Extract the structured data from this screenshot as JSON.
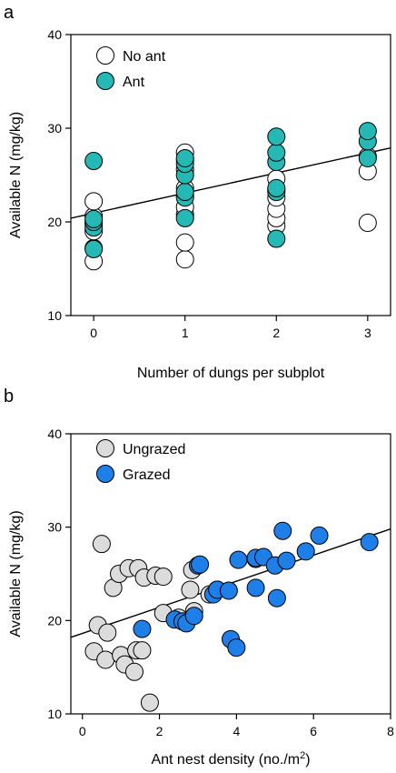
{
  "chart_data": [
    {
      "type": "scatter",
      "panel": "a",
      "xlabel": "Number of dungs per subplot",
      "ylabel": "Available N (mg/kg)",
      "xlim": [
        -0.25,
        3.25
      ],
      "ylim": [
        10,
        40
      ],
      "xticks": [
        0,
        1,
        2,
        3
      ],
      "yticks": [
        10,
        20,
        30,
        40
      ],
      "legend_position": "top-left",
      "series": [
        {
          "name": "No ant",
          "color": "#ffffff",
          "points": [
            [
              0,
              15.8
            ],
            [
              0,
              17.2
            ],
            [
              0,
              19.0
            ],
            [
              0,
              19.8
            ],
            [
              0,
              20.6
            ],
            [
              0,
              22.2
            ],
            [
              1,
              16.0
            ],
            [
              1,
              17.8
            ],
            [
              1,
              20.8
            ],
            [
              1,
              21.6
            ],
            [
              1,
              22.8
            ],
            [
              1,
              23.6
            ],
            [
              1,
              25.6
            ],
            [
              1,
              26.6
            ],
            [
              1,
              27.4
            ],
            [
              2,
              19.6
            ],
            [
              2,
              20.4
            ],
            [
              2,
              21.4
            ],
            [
              2,
              22.6
            ],
            [
              2,
              23.4
            ],
            [
              2,
              24.6
            ],
            [
              3,
              19.9
            ],
            [
              3,
              25.4
            ],
            [
              3,
              27.0
            ]
          ]
        },
        {
          "name": "Ant",
          "color": "#25b8b4",
          "points": [
            [
              0,
              17.1
            ],
            [
              0,
              19.4
            ],
            [
              0,
              20.0
            ],
            [
              0,
              20.3
            ],
            [
              0,
              26.5
            ],
            [
              1,
              20.4
            ],
            [
              1,
              22.6
            ],
            [
              1,
              23.2
            ],
            [
              1,
              25.0
            ],
            [
              1,
              26.2
            ],
            [
              1,
              26.8
            ],
            [
              2,
              18.2
            ],
            [
              2,
              23.2
            ],
            [
              2,
              23.6
            ],
            [
              2,
              26.4
            ],
            [
              2,
              27.4
            ],
            [
              2,
              29.1
            ],
            [
              3,
              26.8
            ],
            [
              3,
              28.6
            ],
            [
              3,
              29.7
            ]
          ]
        }
      ],
      "fit_line": {
        "x": [
          -0.25,
          3.25
        ],
        "y": [
          20.4,
          27.9
        ]
      }
    },
    {
      "type": "scatter",
      "panel": "b",
      "xlabel_main": "Ant nest density (no./m",
      "xlabel_sup": "2",
      "xlabel_end": ")",
      "ylabel": "Available N (mg/kg)",
      "xlim": [
        -0.3,
        8
      ],
      "ylim": [
        10,
        40
      ],
      "xticks": [
        0,
        2,
        4,
        6,
        8
      ],
      "yticks": [
        10,
        20,
        30,
        40
      ],
      "legend_position": "top-left",
      "series": [
        {
          "name": "Ungrazed",
          "color": "#dcdcdc",
          "points": [
            [
              0.3,
              16.7
            ],
            [
              0.4,
              19.5
            ],
            [
              0.5,
              28.2
            ],
            [
              0.6,
              15.8
            ],
            [
              0.65,
              18.7
            ],
            [
              0.8,
              23.5
            ],
            [
              0.95,
              25.0
            ],
            [
              1.0,
              16.3
            ],
            [
              1.1,
              15.3
            ],
            [
              1.2,
              25.6
            ],
            [
              1.35,
              14.5
            ],
            [
              1.4,
              16.8
            ],
            [
              1.45,
              25.6
            ],
            [
              1.55,
              16.8
            ],
            [
              1.6,
              24.6
            ],
            [
              1.75,
              11.2
            ],
            [
              1.9,
              24.8
            ],
            [
              2.1,
              24.7
            ],
            [
              2.1,
              20.8
            ],
            [
              2.5,
              20.3
            ],
            [
              2.8,
              23.3
            ],
            [
              2.85,
              25.4
            ],
            [
              2.9,
              21.0
            ],
            [
              3.3,
              22.8
            ],
            [
              3.5,
              23.3
            ],
            [
              4.5,
              26.6
            ]
          ]
        },
        {
          "name": "Grazed",
          "color": "#1e7fe8",
          "points": [
            [
              1.55,
              19.1
            ],
            [
              2.4,
              20.1
            ],
            [
              2.6,
              19.9
            ],
            [
              2.7,
              19.7
            ],
            [
              2.9,
              20.5
            ],
            [
              3.0,
              25.9
            ],
            [
              3.05,
              26.0
            ],
            [
              3.4,
              22.8
            ],
            [
              3.5,
              23.3
            ],
            [
              3.8,
              23.2
            ],
            [
              3.85,
              18.0
            ],
            [
              4.0,
              17.1
            ],
            [
              4.05,
              26.5
            ],
            [
              4.5,
              23.5
            ],
            [
              4.5,
              26.7
            ],
            [
              4.7,
              26.8
            ],
            [
              5.0,
              25.9
            ],
            [
              5.05,
              22.4
            ],
            [
              5.2,
              29.6
            ],
            [
              5.3,
              26.4
            ],
            [
              5.8,
              27.4
            ],
            [
              6.15,
              29.1
            ],
            [
              7.45,
              28.4
            ]
          ]
        }
      ],
      "fit_line": {
        "x": [
          -0.3,
          8
        ],
        "y": [
          18.2,
          29.8
        ]
      }
    }
  ]
}
